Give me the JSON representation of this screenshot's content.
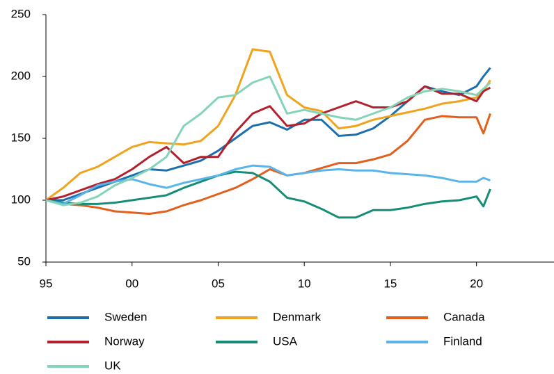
{
  "chart_data": {
    "type": "line",
    "x": [
      1995,
      1996,
      1997,
      1998,
      1999,
      2000,
      2001,
      2002,
      2003,
      2004,
      2005,
      2006,
      2007,
      2008,
      2009,
      2010,
      2011,
      2012,
      2013,
      2014,
      2015,
      2016,
      2017,
      2018,
      2019,
      2020,
      2020.4,
      2020.8
    ],
    "xlim": [
      1995,
      2024.5
    ],
    "xticks": [
      {
        "value": 1995,
        "label": "95"
      },
      {
        "value": 2000,
        "label": "00"
      },
      {
        "value": 2005,
        "label": "05"
      },
      {
        "value": 2010,
        "label": "10"
      },
      {
        "value": 2015,
        "label": "15"
      },
      {
        "value": 2020,
        "label": "20"
      }
    ],
    "ylim": [
      50,
      250
    ],
    "yticks": [
      50,
      100,
      150,
      200,
      250
    ],
    "grid": false,
    "series": [
      {
        "name": "Sweden",
        "color": "#1b6fae",
        "values": [
          100,
          100,
          105,
          110,
          115,
          120,
          125,
          124,
          128,
          132,
          140,
          150,
          160,
          163,
          157,
          165,
          165,
          152,
          153,
          158,
          168,
          180,
          192,
          188,
          185,
          192,
          200,
          207
        ]
      },
      {
        "name": "Denmark",
        "color": "#f0a31c",
        "values": [
          100,
          110,
          122,
          127,
          135,
          143,
          147,
          146,
          145,
          148,
          160,
          185,
          222,
          220,
          185,
          175,
          172,
          158,
          160,
          165,
          168,
          171,
          174,
          178,
          180,
          183,
          188,
          197
        ]
      },
      {
        "name": "Canada",
        "color": "#e35f1b",
        "values": [
          100,
          97,
          96,
          94,
          91,
          90,
          89,
          91,
          96,
          100,
          105,
          110,
          117,
          125,
          120,
          122,
          126,
          130,
          130,
          133,
          137,
          148,
          165,
          168,
          167,
          167,
          154,
          170
        ]
      },
      {
        "name": "Norway",
        "color": "#b3202d",
        "values": [
          100,
          103,
          108,
          113,
          117,
          125,
          135,
          143,
          130,
          135,
          135,
          155,
          170,
          176,
          160,
          162,
          170,
          175,
          180,
          175,
          175,
          180,
          192,
          186,
          186,
          180,
          188,
          191
        ]
      },
      {
        "name": "USA",
        "color": "#148d75",
        "values": [
          100,
          98,
          97,
          97,
          98,
          100,
          102,
          104,
          110,
          115,
          120,
          123,
          122,
          115,
          102,
          99,
          93,
          86,
          86,
          92,
          92,
          94,
          97,
          99,
          100,
          103,
          95,
          109
        ]
      },
      {
        "name": "Finland",
        "color": "#5ab4ea",
        "values": [
          100,
          97,
          104,
          112,
          115,
          117,
          113,
          110,
          114,
          117,
          120,
          125,
          128,
          127,
          120,
          122,
          124,
          125,
          124,
          124,
          122,
          121,
          120,
          118,
          115,
          115,
          118,
          116
        ]
      },
      {
        "name": "UK",
        "color": "#84d4b8",
        "values": [
          100,
          96,
          98,
          103,
          112,
          118,
          125,
          135,
          160,
          170,
          183,
          185,
          195,
          200,
          170,
          173,
          170,
          167,
          165,
          170,
          175,
          183,
          188,
          190,
          188,
          185,
          190,
          195
        ]
      }
    ]
  }
}
